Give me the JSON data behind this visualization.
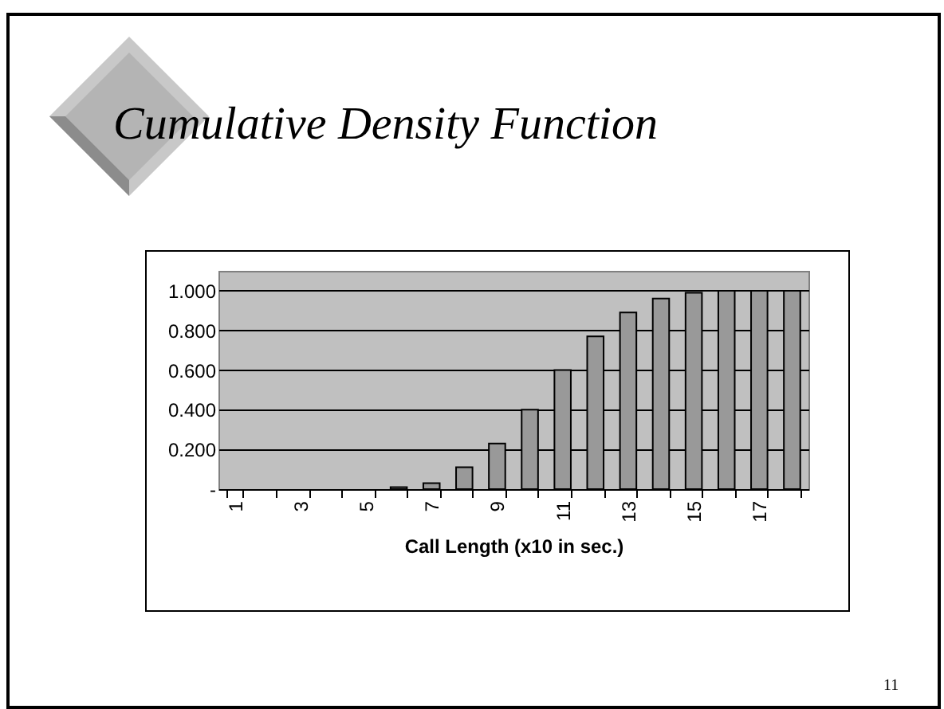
{
  "chart_data": {
    "type": "bar",
    "title": "Cumulative Density Function",
    "xlabel": "Call Length (x10 in sec.)",
    "categories": [
      "1",
      null,
      "3",
      null,
      "5",
      null,
      "7",
      null,
      "9",
      null,
      "11",
      null,
      "13",
      null,
      "15",
      null,
      "17",
      null
    ],
    "values": [
      0,
      0,
      0,
      0,
      0,
      0.01,
      0.03,
      0.11,
      0.23,
      0.4,
      0.6,
      0.77,
      0.89,
      0.96,
      0.99,
      1.0,
      1.0,
      1.0
    ],
    "color": "#999999",
    "ylim": [
      0,
      1.1
    ],
    "yticks": [
      {
        "value": 0,
        "label": "-"
      },
      {
        "value": 0.2,
        "label": "0.200"
      },
      {
        "value": 0.4,
        "label": "0.400"
      },
      {
        "value": 0.6,
        "label": "0.600"
      },
      {
        "value": 0.8,
        "label": "0.800"
      },
      {
        "value": 1.0,
        "label": "1.000"
      }
    ],
    "grid": "y",
    "annotations": [
      "11"
    ]
  }
}
